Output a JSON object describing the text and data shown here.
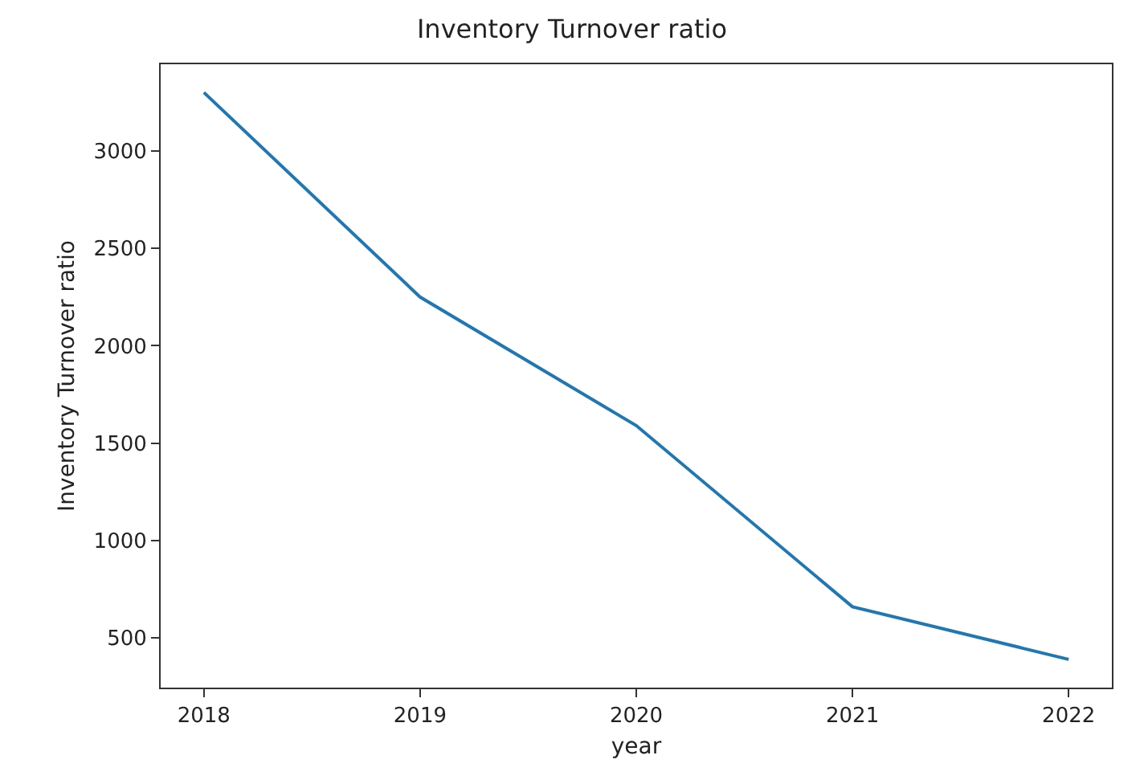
{
  "chart_data": {
    "type": "line",
    "title": "Inventory Turnover ratio",
    "xlabel": "year",
    "ylabel": "Inventory Turnover ratio",
    "x": [
      2018,
      2019,
      2020,
      2021,
      2022
    ],
    "series": [
      {
        "color": "#1f77b4",
        "values": [
          3300,
          2250,
          1590,
          660,
          390
        ]
      }
    ],
    "xlim": [
      2017.8,
      2022.2
    ],
    "xticks": [
      2018,
      2019,
      2020,
      2021,
      2022
    ],
    "ylim": [
      245,
      3445
    ],
    "yticks": [
      500,
      1000,
      1500,
      2000,
      2500,
      3000
    ],
    "marker": "none",
    "line_style": "solid"
  }
}
